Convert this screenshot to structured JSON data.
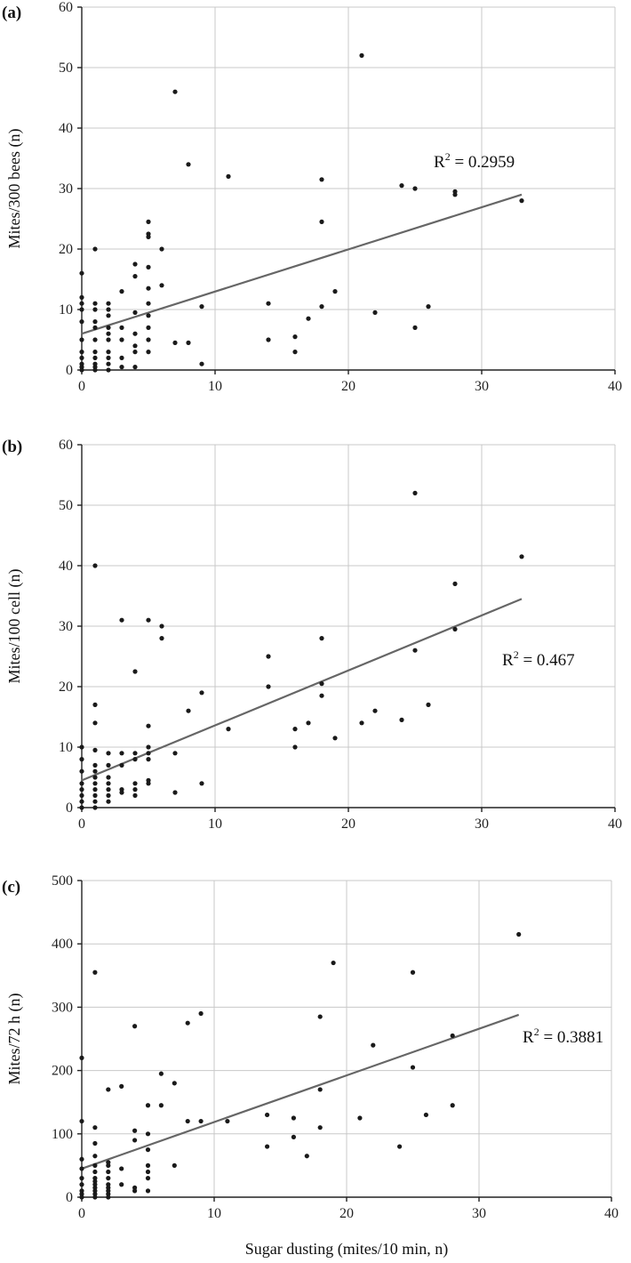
{
  "chart_data": [
    {
      "type": "scatter",
      "panel": "(a)",
      "ylabel": "Mites/300 bees (n)",
      "xlim": [
        0,
        40
      ],
      "ylim": [
        0,
        60
      ],
      "xticks": [
        0,
        10,
        20,
        30,
        40
      ],
      "yticks": [
        0,
        10,
        20,
        30,
        40,
        50,
        60
      ],
      "r2_label": "R2 = 0.2959",
      "trendline": {
        "x": [
          0,
          33
        ],
        "y": [
          6,
          29
        ]
      },
      "points": [
        [
          0,
          0
        ],
        [
          0,
          0.5
        ],
        [
          0,
          1
        ],
        [
          0,
          2
        ],
        [
          0,
          3
        ],
        [
          0,
          5
        ],
        [
          0,
          8
        ],
        [
          0,
          10
        ],
        [
          0,
          11
        ],
        [
          0,
          12
        ],
        [
          0,
          16
        ],
        [
          1,
          0
        ],
        [
          1,
          0.5
        ],
        [
          1,
          1
        ],
        [
          1,
          2
        ],
        [
          1,
          3
        ],
        [
          1,
          5
        ],
        [
          1,
          7
        ],
        [
          1,
          8
        ],
        [
          1,
          10
        ],
        [
          1,
          11
        ],
        [
          1,
          20
        ],
        [
          2,
          0
        ],
        [
          2,
          1
        ],
        [
          2,
          2
        ],
        [
          2,
          3
        ],
        [
          2,
          5
        ],
        [
          2,
          6
        ],
        [
          2,
          7
        ],
        [
          2,
          9
        ],
        [
          2,
          10
        ],
        [
          2,
          11
        ],
        [
          3,
          0.5
        ],
        [
          3,
          2
        ],
        [
          3,
          5
        ],
        [
          3,
          7
        ],
        [
          3,
          13
        ],
        [
          4,
          0.5
        ],
        [
          4,
          3
        ],
        [
          4,
          4
        ],
        [
          4,
          6
        ],
        [
          4,
          9.5
        ],
        [
          4,
          15.5
        ],
        [
          4,
          17.5
        ],
        [
          5,
          3
        ],
        [
          5,
          5
        ],
        [
          5,
          7
        ],
        [
          5,
          9
        ],
        [
          5,
          11
        ],
        [
          5,
          13.5
        ],
        [
          5,
          17
        ],
        [
          5,
          22
        ],
        [
          5,
          22.5
        ],
        [
          5,
          24.5
        ],
        [
          6,
          14
        ],
        [
          6,
          20
        ],
        [
          7,
          4.5
        ],
        [
          7,
          46
        ],
        [
          8,
          4.5
        ],
        [
          8,
          34
        ],
        [
          9,
          1
        ],
        [
          9,
          10.5
        ],
        [
          11,
          32
        ],
        [
          14,
          5
        ],
        [
          14,
          11
        ],
        [
          16,
          3
        ],
        [
          16,
          5.5
        ],
        [
          17,
          8.5
        ],
        [
          18,
          10.5
        ],
        [
          18,
          24.5
        ],
        [
          18,
          31.5
        ],
        [
          19,
          13
        ],
        [
          21,
          52
        ],
        [
          22,
          9.5
        ],
        [
          24,
          30.5
        ],
        [
          25,
          7
        ],
        [
          25,
          30
        ],
        [
          26,
          10.5
        ],
        [
          28,
          29
        ],
        [
          28,
          29.5
        ],
        [
          33,
          28
        ]
      ]
    },
    {
      "type": "scatter",
      "panel": "(b)",
      "ylabel": "Mites/100 cell (n)",
      "xlim": [
        0,
        40
      ],
      "ylim": [
        0,
        60
      ],
      "xticks": [
        0,
        10,
        20,
        30,
        40
      ],
      "yticks": [
        0,
        10,
        20,
        30,
        40,
        50,
        60
      ],
      "r2_label": "R2 = 0.467",
      "trendline": {
        "x": [
          0,
          33
        ],
        "y": [
          4.5,
          34.5
        ]
      },
      "points": [
        [
          0,
          0
        ],
        [
          0,
          1
        ],
        [
          0,
          2
        ],
        [
          0,
          3
        ],
        [
          0,
          4
        ],
        [
          0,
          6
        ],
        [
          0,
          8
        ],
        [
          0,
          10
        ],
        [
          1,
          0
        ],
        [
          1,
          1
        ],
        [
          1,
          2
        ],
        [
          1,
          3
        ],
        [
          1,
          4
        ],
        [
          1,
          5
        ],
        [
          1,
          6
        ],
        [
          1,
          7
        ],
        [
          1,
          9.5
        ],
        [
          1,
          14
        ],
        [
          1,
          17
        ],
        [
          1,
          40
        ],
        [
          2,
          1
        ],
        [
          2,
          2
        ],
        [
          2,
          3
        ],
        [
          2,
          4
        ],
        [
          2,
          5
        ],
        [
          2,
          7
        ],
        [
          2,
          9
        ],
        [
          3,
          2.5
        ],
        [
          3,
          3
        ],
        [
          3,
          7
        ],
        [
          3,
          9
        ],
        [
          3,
          31
        ],
        [
          4,
          2
        ],
        [
          4,
          3
        ],
        [
          4,
          4
        ],
        [
          4,
          8
        ],
        [
          4,
          9
        ],
        [
          4,
          22.5
        ],
        [
          5,
          4
        ],
        [
          5,
          4.5
        ],
        [
          5,
          8
        ],
        [
          5,
          9
        ],
        [
          5,
          10
        ],
        [
          5,
          13.5
        ],
        [
          5,
          31
        ],
        [
          6,
          28
        ],
        [
          6,
          30
        ],
        [
          7,
          2.5
        ],
        [
          7,
          9
        ],
        [
          8,
          16
        ],
        [
          9,
          4
        ],
        [
          9,
          19
        ],
        [
          11,
          13
        ],
        [
          14,
          20
        ],
        [
          14,
          25
        ],
        [
          16,
          10
        ],
        [
          16,
          13
        ],
        [
          17,
          14
        ],
        [
          18,
          18.5
        ],
        [
          18,
          20.5
        ],
        [
          18,
          28
        ],
        [
          19,
          11.5
        ],
        [
          21,
          14
        ],
        [
          22,
          16
        ],
        [
          24,
          14.5
        ],
        [
          25,
          26
        ],
        [
          25,
          52
        ],
        [
          26,
          17
        ],
        [
          28,
          29.5
        ],
        [
          28,
          37
        ],
        [
          33,
          41.5
        ]
      ]
    },
    {
      "type": "scatter",
      "panel": "(c)",
      "ylabel": "Mites/72 h (n)",
      "xlabel": "Sugar dusting (mites/10 min, n)",
      "xlim": [
        0,
        40
      ],
      "ylim": [
        0,
        500
      ],
      "xticks": [
        0,
        10,
        20,
        30,
        40
      ],
      "yticks": [
        0,
        100,
        200,
        300,
        400,
        500
      ],
      "r2_label": "R2 = 0.3881",
      "trendline": {
        "x": [
          0,
          33
        ],
        "y": [
          45,
          288
        ]
      },
      "points": [
        [
          0,
          0
        ],
        [
          0,
          5
        ],
        [
          0,
          10
        ],
        [
          0,
          20
        ],
        [
          0,
          30
        ],
        [
          0,
          45
        ],
        [
          0,
          60
        ],
        [
          0,
          120
        ],
        [
          0,
          220
        ],
        [
          1,
          0
        ],
        [
          1,
          5
        ],
        [
          1,
          10
        ],
        [
          1,
          15
        ],
        [
          1,
          20
        ],
        [
          1,
          25
        ],
        [
          1,
          30
        ],
        [
          1,
          40
        ],
        [
          1,
          50
        ],
        [
          1,
          65
        ],
        [
          1,
          85
        ],
        [
          1,
          110
        ],
        [
          1,
          355
        ],
        [
          2,
          0
        ],
        [
          2,
          5
        ],
        [
          2,
          10
        ],
        [
          2,
          15
        ],
        [
          2,
          20
        ],
        [
          2,
          30
        ],
        [
          2,
          40
        ],
        [
          2,
          50
        ],
        [
          2,
          55
        ],
        [
          2,
          170
        ],
        [
          3,
          20
        ],
        [
          3,
          45
        ],
        [
          3,
          175
        ],
        [
          4,
          10
        ],
        [
          4,
          15
        ],
        [
          4,
          90
        ],
        [
          4,
          105
        ],
        [
          4,
          270
        ],
        [
          5,
          10
        ],
        [
          5,
          30
        ],
        [
          5,
          40
        ],
        [
          5,
          50
        ],
        [
          5,
          75
        ],
        [
          5,
          100
        ],
        [
          5,
          145
        ],
        [
          6,
          145
        ],
        [
          6,
          195
        ],
        [
          7,
          50
        ],
        [
          7,
          180
        ],
        [
          8,
          120
        ],
        [
          8,
          275
        ],
        [
          9,
          120
        ],
        [
          9,
          290
        ],
        [
          11,
          120
        ],
        [
          14,
          80
        ],
        [
          14,
          130
        ],
        [
          16,
          95
        ],
        [
          16,
          125
        ],
        [
          17,
          65
        ],
        [
          18,
          110
        ],
        [
          18,
          170
        ],
        [
          18,
          285
        ],
        [
          19,
          370
        ],
        [
          21,
          125
        ],
        [
          22,
          240
        ],
        [
          24,
          80
        ],
        [
          25,
          205
        ],
        [
          25,
          355
        ],
        [
          26,
          130
        ],
        [
          28,
          145
        ],
        [
          28,
          255
        ],
        [
          33,
          415
        ]
      ]
    }
  ]
}
